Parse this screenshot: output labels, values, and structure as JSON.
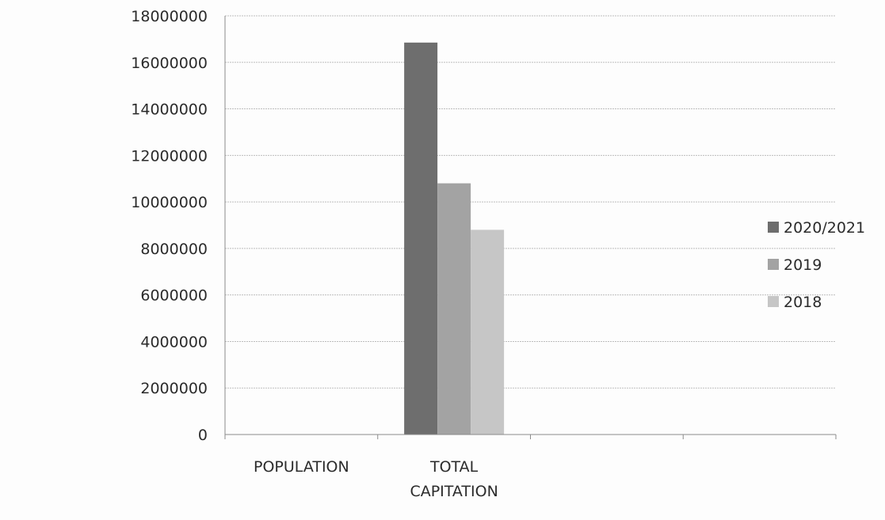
{
  "chart_data": {
    "type": "bar",
    "title": "",
    "xlabel": "",
    "ylabel": "",
    "categories": [
      "POPULATION",
      "TOTAL CAPITATION",
      "",
      ""
    ],
    "series": [
      {
        "name": "2020/2021",
        "values": [
          0,
          16850000,
          0,
          0
        ],
        "color": "#6e6e6e"
      },
      {
        "name": "2019",
        "values": [
          0,
          10800000,
          0,
          0
        ],
        "color": "#a3a3a3"
      },
      {
        "name": "2018",
        "values": [
          0,
          8800000,
          0,
          0
        ],
        "color": "#c6c6c6"
      }
    ],
    "ylim": [
      0,
      18000000
    ],
    "yticks": [
      0,
      2000000,
      4000000,
      6000000,
      8000000,
      10000000,
      12000000,
      14000000,
      16000000,
      18000000
    ],
    "grid": true,
    "legend_position": "right"
  }
}
